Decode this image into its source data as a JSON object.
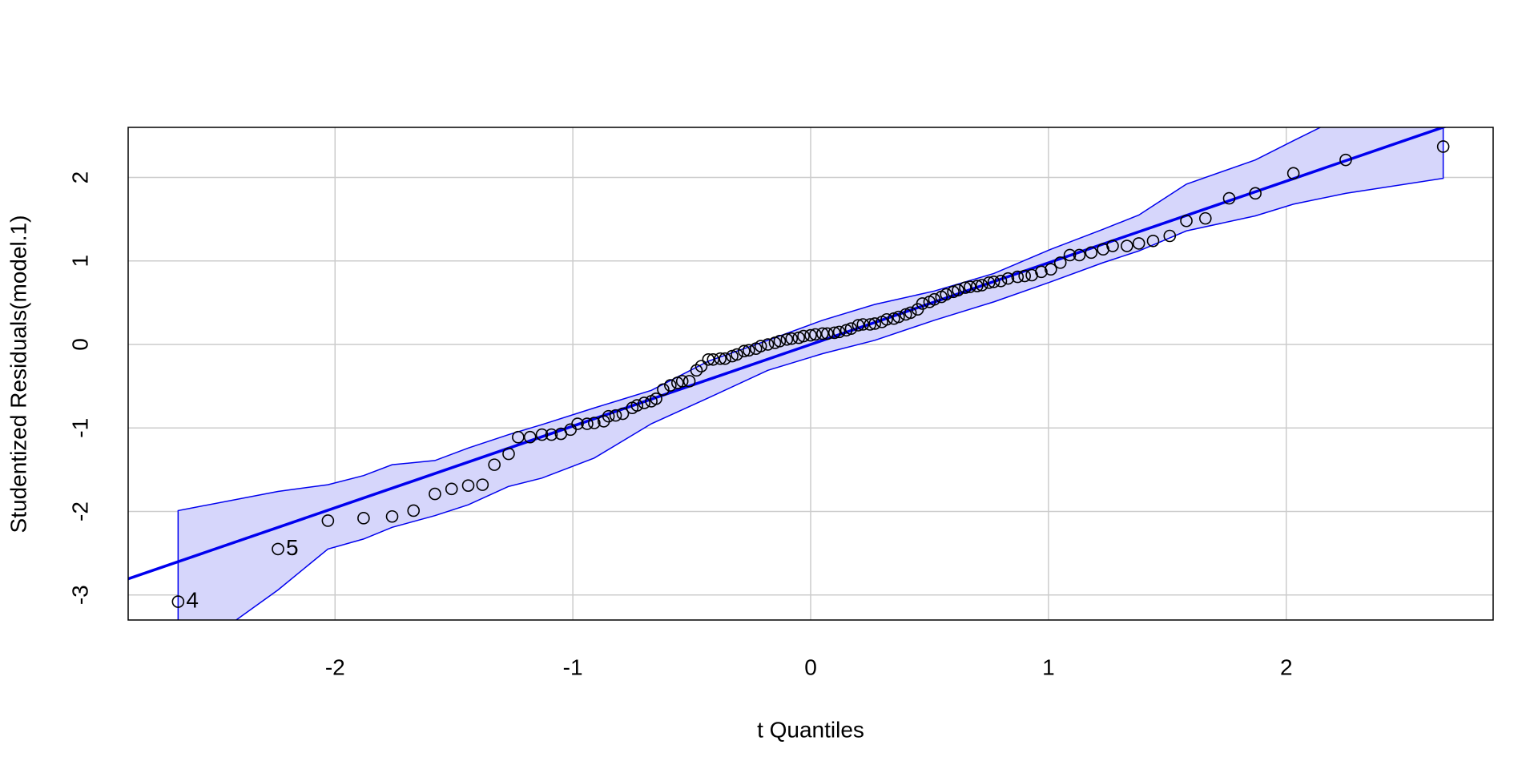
{
  "chart_data": {
    "type": "qqplot",
    "x_label": "t Quantiles",
    "y_label": "Studentized Residuals(model.1)",
    "xlim": [
      -2.87,
      2.87
    ],
    "ylim": [
      -3.3,
      2.6
    ],
    "xticks": [
      -2,
      -1,
      0,
      1,
      2
    ],
    "yticks": [
      -3,
      -2,
      -1,
      0,
      1,
      2
    ],
    "grid": true,
    "point_color": "#000000",
    "line_color": "#0000ee",
    "band_color": "#d6d6fb",
    "x": [
      -2.66,
      -2.24,
      -2.03,
      -1.88,
      -1.76,
      -1.67,
      -1.58,
      -1.51,
      -1.44,
      -1.38,
      -1.33,
      -1.27,
      -1.23,
      -1.18,
      -1.13,
      -1.09,
      -1.05,
      -1.01,
      -0.98,
      -0.94,
      -0.91,
      -0.87,
      -0.85,
      -0.82,
      -0.79,
      -0.75,
      -0.73,
      -0.7,
      -0.67,
      -0.65,
      -0.62,
      -0.59,
      -0.56,
      -0.54,
      -0.51,
      -0.48,
      -0.46,
      -0.43,
      -0.41,
      -0.38,
      -0.36,
      -0.33,
      -0.31,
      -0.28,
      -0.26,
      -0.23,
      -0.21,
      -0.18,
      -0.15,
      -0.13,
      -0.1,
      -0.08,
      -0.05,
      -0.03,
      0.0,
      0.02,
      0.05,
      0.07,
      0.1,
      0.12,
      0.15,
      0.17,
      0.2,
      0.22,
      0.25,
      0.27,
      0.3,
      0.32,
      0.35,
      0.37,
      0.4,
      0.42,
      0.45,
      0.47,
      0.5,
      0.52,
      0.55,
      0.57,
      0.6,
      0.62,
      0.65,
      0.67,
      0.7,
      0.72,
      0.75,
      0.77,
      0.8,
      0.83,
      0.87,
      0.9,
      0.93,
      0.97,
      1.01,
      1.05,
      1.09,
      1.13,
      1.18,
      1.23,
      1.27,
      1.33,
      1.38,
      1.44,
      1.51,
      1.58,
      1.66,
      1.76,
      1.87,
      2.03,
      2.25,
      2.66
    ],
    "values": [
      -3.08,
      -2.45,
      -2.11,
      -2.08,
      -2.06,
      -1.99,
      -1.79,
      -1.73,
      -1.69,
      -1.68,
      -1.44,
      -1.31,
      -1.11,
      -1.11,
      -1.08,
      -1.08,
      -1.07,
      -1.02,
      -0.95,
      -0.95,
      -0.94,
      -0.92,
      -0.86,
      -0.85,
      -0.83,
      -0.76,
      -0.73,
      -0.7,
      -0.68,
      -0.65,
      -0.54,
      -0.49,
      -0.46,
      -0.44,
      -0.44,
      -0.31,
      -0.26,
      -0.18,
      -0.18,
      -0.17,
      -0.17,
      -0.14,
      -0.12,
      -0.08,
      -0.07,
      -0.05,
      -0.02,
      0.0,
      0.02,
      0.04,
      0.06,
      0.07,
      0.08,
      0.1,
      0.11,
      0.12,
      0.13,
      0.13,
      0.14,
      0.15,
      0.17,
      0.19,
      0.23,
      0.24,
      0.24,
      0.25,
      0.27,
      0.3,
      0.31,
      0.33,
      0.36,
      0.38,
      0.42,
      0.49,
      0.51,
      0.54,
      0.57,
      0.6,
      0.63,
      0.65,
      0.68,
      0.69,
      0.7,
      0.71,
      0.74,
      0.75,
      0.76,
      0.79,
      0.81,
      0.82,
      0.83,
      0.87,
      0.9,
      0.98,
      1.07,
      1.07,
      1.1,
      1.14,
      1.18,
      1.18,
      1.21,
      1.24,
      1.3,
      1.48,
      1.51,
      1.75,
      1.81,
      2.05,
      2.21,
      2.37
    ],
    "point_labels": [
      "4",
      "5",
      null,
      null,
      null,
      null,
      null,
      null,
      null,
      null,
      null,
      null,
      null,
      null,
      null,
      null,
      null,
      null,
      null,
      null,
      null,
      null,
      null,
      null,
      null,
      null,
      null,
      null,
      null,
      null,
      null,
      null,
      null,
      null,
      null,
      null,
      null,
      null,
      null,
      null,
      null,
      null,
      null,
      null,
      null,
      null,
      null,
      null,
      null,
      null,
      null,
      null,
      null,
      null,
      null,
      null,
      null,
      null,
      null,
      null,
      null,
      null,
      null,
      null,
      null,
      null,
      null,
      null,
      null,
      null,
      null,
      null,
      null,
      null,
      null,
      null,
      null,
      null,
      null,
      null,
      null,
      null,
      null,
      null,
      null,
      null,
      null,
      null,
      null,
      null,
      null,
      null,
      null,
      null,
      null,
      null,
      null,
      null,
      null,
      null,
      null,
      null,
      null,
      null,
      null,
      null,
      null,
      null,
      null,
      null
    ],
    "reference_line": {
      "intercept": 0.0,
      "slope": 0.978
    },
    "band": {
      "x": [
        -2.66,
        -2.24,
        -2.03,
        -1.88,
        -1.76,
        -1.58,
        -1.44,
        -1.27,
        -1.13,
        -0.91,
        -0.67,
        -0.43,
        -0.18,
        0.05,
        0.27,
        0.52,
        0.77,
        1.01,
        1.23,
        1.38,
        1.58,
        1.87,
        2.03,
        2.25,
        2.66
      ],
      "upper": [
        -1.99,
        -1.76,
        -1.68,
        -1.57,
        -1.44,
        -1.39,
        -1.24,
        -1.08,
        -0.96,
        -0.76,
        -0.55,
        -0.2,
        0.05,
        0.29,
        0.48,
        0.64,
        0.85,
        1.14,
        1.38,
        1.55,
        1.92,
        2.21,
        2.44,
        2.75,
        3.0
      ],
      "lower": [
        -3.8,
        -2.94,
        -2.45,
        -2.33,
        -2.19,
        -2.05,
        -1.92,
        -1.7,
        -1.6,
        -1.36,
        -0.95,
        -0.64,
        -0.31,
        -0.11,
        0.05,
        0.29,
        0.51,
        0.75,
        0.98,
        1.12,
        1.36,
        1.54,
        1.68,
        1.81,
        1.99
      ]
    }
  }
}
